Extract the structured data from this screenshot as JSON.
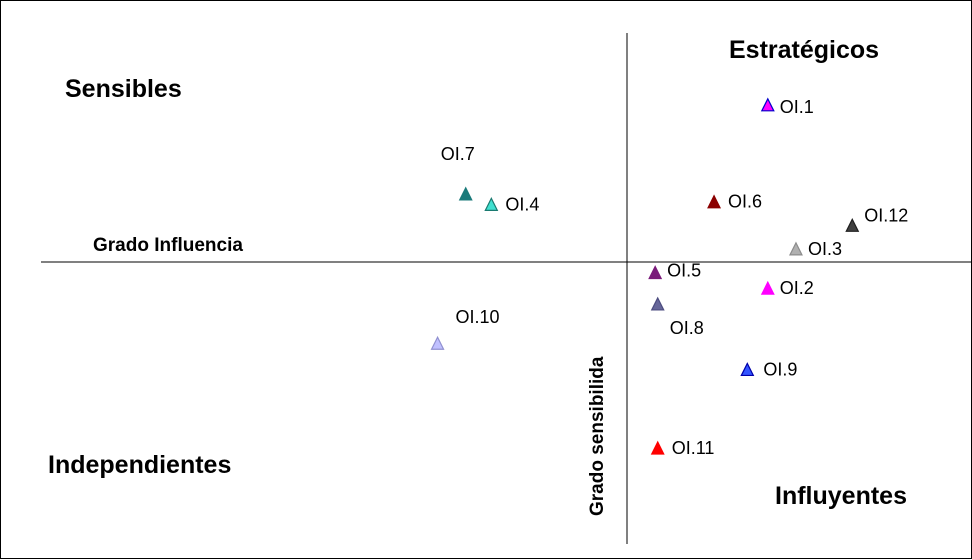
{
  "chart_data": {
    "type": "scatter",
    "xlabel": "Grado Influencia",
    "ylabel": "Grado sensibilida",
    "quadrants": {
      "top_left": "Sensibles",
      "top_right": "Estratégicos",
      "bottom_left": "Independientes",
      "bottom_right": "Influyentes"
    },
    "quadrant_color": "#ff0000",
    "grid": false,
    "points": [
      {
        "label": "OI.1",
        "x": 0.55,
        "y": 0.6,
        "color": "#ff00ff",
        "outline": "#0000cc"
      },
      {
        "label": "OI.2",
        "x": 0.55,
        "y": -0.1,
        "color": "#ff00ff",
        "outline": "#ff00ff"
      },
      {
        "label": "OI.3",
        "x": 0.66,
        "y": 0.05,
        "color": "#b0b0b0",
        "outline": "#8c8c8c"
      },
      {
        "label": "OI.4",
        "x": -0.53,
        "y": 0.22,
        "color": "#40e0d0",
        "outline": "#1a7a70"
      },
      {
        "label": "OI.5",
        "x": 0.11,
        "y": -0.04,
        "color": "#7a1a7a",
        "outline": "#7a1a7a"
      },
      {
        "label": "OI.6",
        "x": 0.34,
        "y": 0.23,
        "color": "#8b0000",
        "outline": "#8b0000"
      },
      {
        "label": "OI.7",
        "x": -0.63,
        "y": 0.26,
        "color": "#1a7a7a",
        "outline": "#1a7a7a"
      },
      {
        "label": "OI.8",
        "x": 0.12,
        "y": -0.16,
        "color": "#666699",
        "outline": "#4d4d80"
      },
      {
        "label": "OI.9",
        "x": 0.47,
        "y": -0.41,
        "color": "#3355ff",
        "outline": "#0000aa"
      },
      {
        "label": "OI.10",
        "x": -0.74,
        "y": -0.31,
        "color": "#c0c0ff",
        "outline": "#9090d0"
      },
      {
        "label": "OI.11",
        "x": 0.12,
        "y": -0.71,
        "color": "#ff0000",
        "outline": "#ff0000"
      },
      {
        "label": "OI.12",
        "x": 0.88,
        "y": 0.14,
        "color": "#404040",
        "outline": "#202020"
      }
    ]
  }
}
